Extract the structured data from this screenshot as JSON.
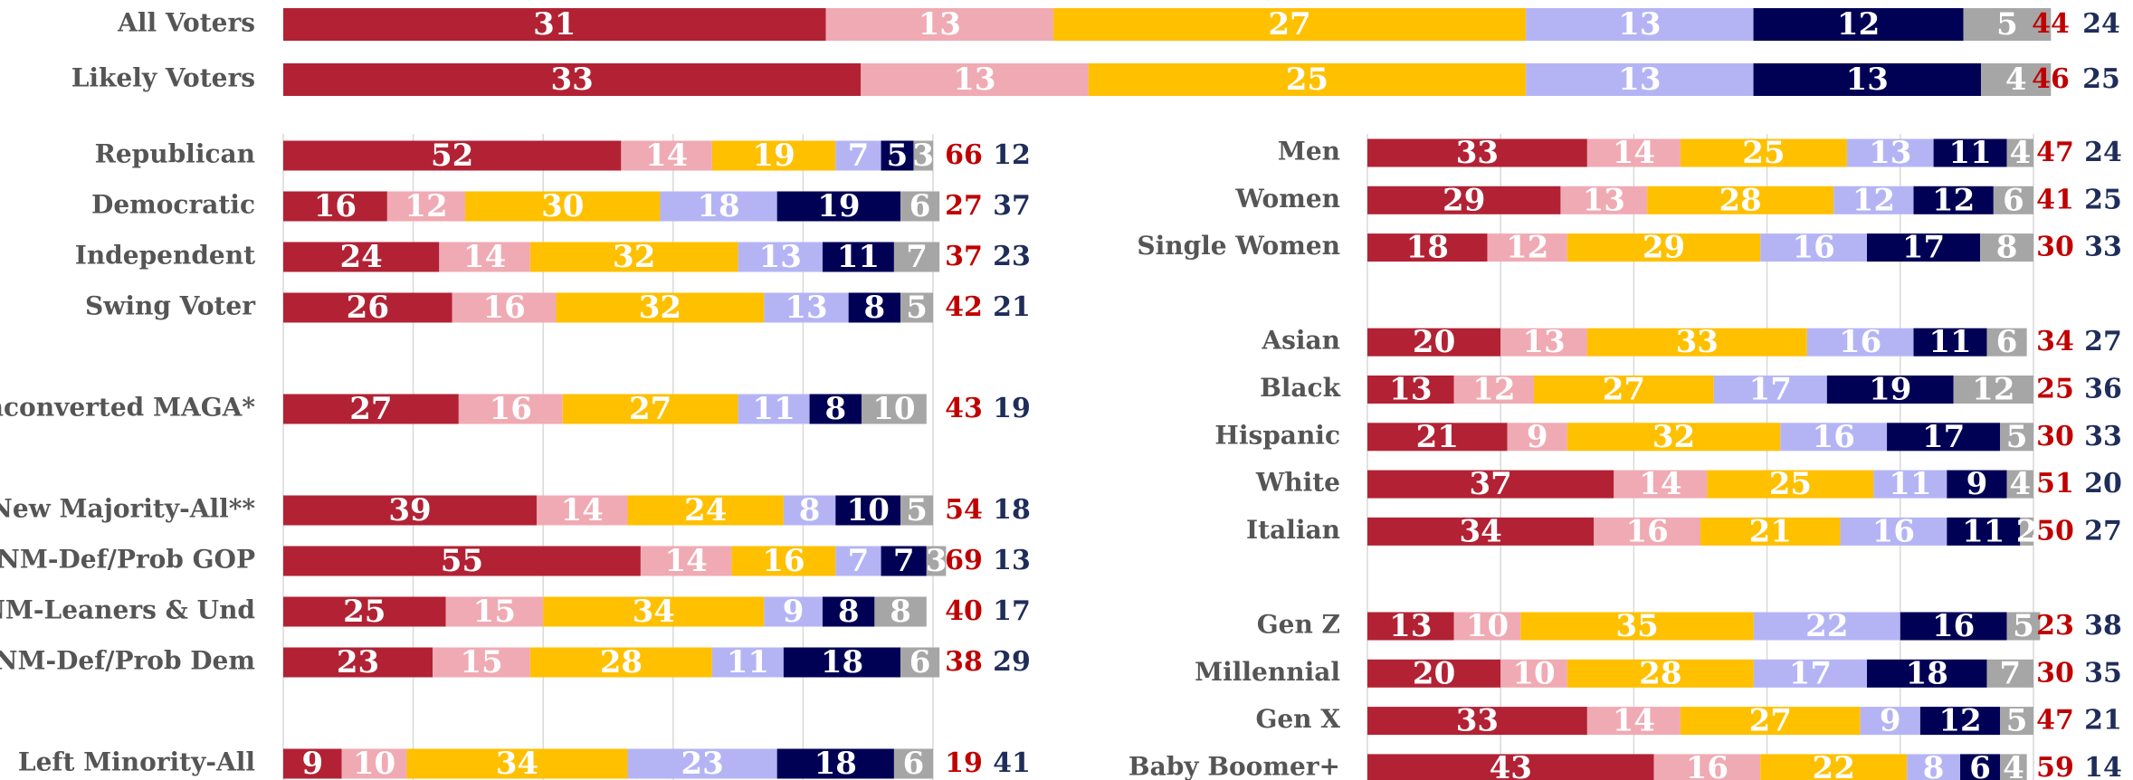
{
  "chart_data": [
    {
      "type": "bar",
      "orientation": "horizontal",
      "categories": [
        "All Voters",
        "Likely Voters"
      ],
      "xlim": [
        0,
        100
      ],
      "series": [
        {
          "color": "#b22234",
          "values": [
            31,
            33
          ]
        },
        {
          "color": "#f0aab3",
          "values": [
            13,
            13
          ]
        },
        {
          "color": "#ffc000",
          "values": [
            27,
            25
          ]
        },
        {
          "color": "#b4b4f5",
          "values": [
            13,
            13
          ]
        },
        {
          "color": "#000055",
          "values": [
            12,
            13
          ]
        },
        {
          "color": "#a6a6a6",
          "values": [
            5,
            4
          ]
        }
      ],
      "totals": [
        {
          "color": "#c00000",
          "values": [
            44,
            46
          ]
        },
        {
          "color": "#1f2d5a",
          "values": [
            24,
            25
          ]
        }
      ]
    },
    {
      "type": "bar",
      "orientation": "horizontal",
      "categories": [
        "Republican",
        "Democratic",
        "Independent",
        "Swing Voter",
        null,
        "Unconverted MAGA*",
        null,
        "New Majority-All**",
        "NM-Def/Prob GOP",
        "NM-Leaners & Und",
        "NM-Def/Prob Dem",
        null,
        "Left Minority-All"
      ],
      "xlim": [
        0,
        100
      ],
      "xticks": [
        0,
        20,
        40,
        60,
        80,
        100
      ],
      "grid": true,
      "series": [
        {
          "color": "#b22234",
          "values": [
            52,
            16,
            24,
            26,
            null,
            27,
            null,
            39,
            55,
            25,
            23,
            null,
            9
          ]
        },
        {
          "color": "#f0aab3",
          "values": [
            14,
            12,
            14,
            16,
            null,
            16,
            null,
            14,
            14,
            15,
            15,
            null,
            10
          ]
        },
        {
          "color": "#ffc000",
          "values": [
            19,
            30,
            32,
            32,
            null,
            27,
            null,
            24,
            16,
            34,
            28,
            null,
            34
          ]
        },
        {
          "color": "#b4b4f5",
          "values": [
            7,
            18,
            13,
            13,
            null,
            11,
            null,
            8,
            7,
            9,
            11,
            null,
            23
          ]
        },
        {
          "color": "#000055",
          "values": [
            5,
            19,
            11,
            8,
            null,
            8,
            null,
            10,
            7,
            8,
            18,
            null,
            18
          ]
        },
        {
          "color": "#a6a6a6",
          "values": [
            3,
            6,
            7,
            5,
            null,
            10,
            null,
            5,
            3,
            8,
            6,
            null,
            6
          ]
        }
      ],
      "totals": [
        {
          "color": "#c00000",
          "values": [
            66,
            27,
            37,
            42,
            null,
            43,
            null,
            54,
            69,
            40,
            38,
            null,
            19
          ]
        },
        {
          "color": "#1f2d5a",
          "values": [
            12,
            37,
            23,
            21,
            null,
            19,
            null,
            18,
            13,
            17,
            29,
            null,
            41
          ]
        }
      ]
    },
    {
      "type": "bar",
      "orientation": "horizontal",
      "categories": [
        "Men",
        "Women",
        "Single Women",
        null,
        "Asian",
        "Black",
        "Hispanic",
        "White",
        "Italian",
        null,
        "Gen Z",
        "Millennial",
        "Gen X",
        "Baby Boomer+"
      ],
      "xlim": [
        0,
        100
      ],
      "xticks": [
        0,
        20,
        40,
        60,
        80,
        100
      ],
      "grid": true,
      "series": [
        {
          "color": "#b22234",
          "values": [
            33,
            29,
            18,
            null,
            20,
            13,
            21,
            37,
            34,
            null,
            13,
            20,
            33,
            43
          ]
        },
        {
          "color": "#f0aab3",
          "values": [
            14,
            13,
            12,
            null,
            13,
            12,
            9,
            14,
            16,
            null,
            10,
            10,
            14,
            16
          ]
        },
        {
          "color": "#ffc000",
          "values": [
            25,
            28,
            29,
            null,
            33,
            27,
            32,
            25,
            21,
            null,
            35,
            28,
            27,
            22
          ]
        },
        {
          "color": "#b4b4f5",
          "values": [
            13,
            12,
            16,
            null,
            16,
            17,
            16,
            11,
            16,
            null,
            22,
            17,
            9,
            8
          ]
        },
        {
          "color": "#000055",
          "values": [
            11,
            12,
            17,
            null,
            11,
            19,
            17,
            9,
            11,
            null,
            16,
            18,
            12,
            6
          ]
        },
        {
          "color": "#a6a6a6",
          "values": [
            4,
            6,
            8,
            null,
            6,
            12,
            5,
            4,
            2,
            null,
            5,
            7,
            5,
            4
          ]
        }
      ],
      "totals": [
        {
          "color": "#c00000",
          "values": [
            47,
            41,
            30,
            null,
            34,
            25,
            30,
            51,
            50,
            null,
            23,
            30,
            47,
            59
          ]
        },
        {
          "color": "#1f2d5a",
          "values": [
            24,
            25,
            33,
            null,
            27,
            36,
            33,
            20,
            27,
            null,
            38,
            35,
            21,
            14
          ]
        }
      ]
    }
  ]
}
